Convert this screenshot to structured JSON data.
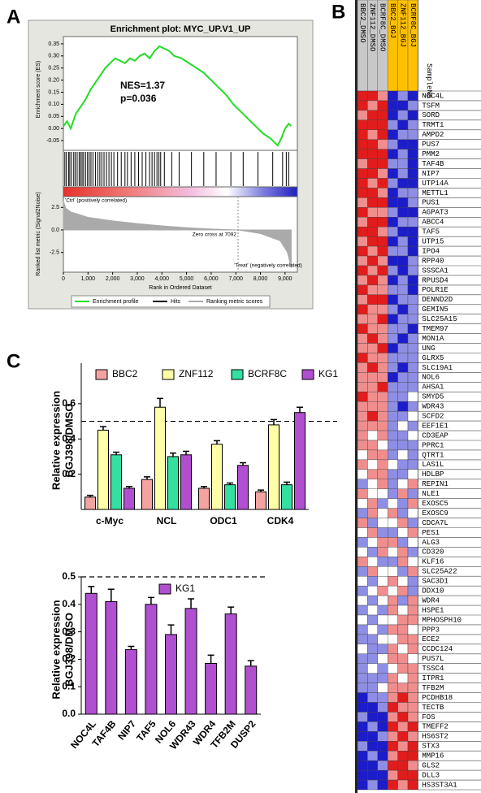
{
  "chart_data": [
    {
      "type": "line",
      "panel": "A",
      "title": "Enrichment plot: MYC_UP.V1_UP",
      "annotations": [
        "NES=1.37",
        "p=0.036"
      ],
      "ylabel": "Enrichment score (ES)",
      "xlabel": "Rank in Ordered Dataset",
      "x": [
        0,
        150,
        300,
        500,
        700,
        900,
        1100,
        1300,
        1500,
        1700,
        1900,
        2100,
        2300,
        2500,
        2700,
        2900,
        3100,
        3300,
        3500,
        3700,
        3900,
        4100,
        4300,
        4500,
        4800,
        5100,
        5400,
        5700,
        6000,
        6300,
        6600,
        6900,
        7200,
        7500,
        7800,
        8100,
        8400,
        8700,
        8850,
        9000,
        9150,
        9250
      ],
      "series": [
        {
          "name": "Enrichment profile",
          "color": "#22dd22",
          "values": [
            0.01,
            0.03,
            0.0,
            0.06,
            0.09,
            0.12,
            0.16,
            0.19,
            0.22,
            0.25,
            0.27,
            0.29,
            0.28,
            0.27,
            0.29,
            0.28,
            0.3,
            0.31,
            0.29,
            0.32,
            0.34,
            0.33,
            0.32,
            0.3,
            0.29,
            0.27,
            0.25,
            0.23,
            0.2,
            0.17,
            0.14,
            0.1,
            0.07,
            0.04,
            0.01,
            -0.02,
            -0.04,
            -0.07,
            -0.04,
            0.0,
            0.02,
            0.01
          ]
        }
      ],
      "xlim": [
        0,
        9500
      ],
      "ylim": [
        -0.09,
        0.38
      ],
      "yticks": [
        0.35,
        {
          "value": 0.3,
          "label": "0.30"
        },
        0.25,
        {
          "value": 0.2,
          "label": "0.20"
        },
        0.15,
        {
          "value": 0.1,
          "label": "0.10"
        },
        0.05,
        {
          "value": 0,
          "label": "0.00"
        },
        -0.05
      ],
      "xticks": [
        0,
        {
          "value": 1000,
          "label": "1,000"
        },
        {
          "value": 2000,
          "label": "2,000"
        },
        {
          "value": 3000,
          "label": "3,000"
        },
        {
          "value": 4000,
          "label": "4,000"
        },
        {
          "value": 5000,
          "label": "5,000"
        },
        {
          "value": 6000,
          "label": "6,000"
        },
        {
          "value": 7000,
          "label": "7,000"
        },
        {
          "value": 8000,
          "label": "8,000"
        },
        {
          "value": 9000,
          "label": "9,000"
        }
      ],
      "hits": {
        "name": "Hits",
        "color": "#000000",
        "x": [
          60,
          120,
          210,
          260,
          330,
          420,
          480,
          560,
          640,
          700,
          760,
          820,
          900,
          980,
          1050,
          1120,
          1200,
          1300,
          1400,
          1480,
          1560,
          1650,
          1750,
          1850,
          1950,
          2050,
          2200,
          2350,
          2500,
          2600,
          2750,
          2900,
          3050,
          3200,
          3350,
          3500,
          3600,
          3700,
          3800,
          3880,
          3950,
          4100,
          4400,
          4700,
          5200,
          5700,
          6200,
          6800,
          7300,
          7900,
          8500,
          8900,
          9050,
          9150
        ]
      },
      "ranked_metric": {
        "name": "Ranking metric scores",
        "color": "#aaaaaa",
        "ylabel": "Ranked list metric (Signal2Noise)",
        "x": [
          0,
          100,
          300,
          1000,
          2000,
          3000,
          4000,
          5000,
          6000,
          7092,
          8000,
          8800,
          9100,
          9250
        ],
        "values": [
          3.2,
          2.4,
          2.0,
          1.4,
          1.0,
          0.7,
          0.45,
          0.25,
          0.1,
          0,
          -0.4,
          -1.2,
          -2.5,
          -4.2
        ],
        "ylim": [
          -4.7,
          3.7
        ],
        "yticks": [
          2.5,
          {
            "value": 0,
            "label": "0.0"
          },
          -2.5
        ],
        "zero_cross": 7092,
        "annotations": [
          "'Ctrl' (positively correlated)",
          "Zero cross at 7092",
          "'Treat' (negatively correlated)"
        ]
      }
    },
    {
      "type": "heatmap",
      "panel": "B",
      "columns": [
        "BBC2_DMSO",
        "ZNF112_DMSO",
        "BCRF8C_DMSO",
        "BBC2_BGJ",
        "ZNF112_BGJ",
        "BCRF8C_BGJ"
      ],
      "column_colors": [
        "#c8c8c8",
        "#c8c8c8",
        "#c8c8c8",
        "#ffc000",
        "#ffc000",
        "#ffc000"
      ],
      "column_header": "SampleNa",
      "colors": {
        "low": "#1c1cc8",
        "mid": "#ffffff",
        "high": "#e01c1c"
      },
      "rows": [
        "NOC4L",
        "TSFM",
        "SORD",
        "TRMT1",
        "AMPD2",
        "PUS7",
        "PMM2",
        "TAF4B",
        "NIP7",
        "UTP14A",
        "METTL1",
        "PUS1",
        "AGPAT3",
        "ABCC4",
        "TAF5",
        "UTP15",
        "IPO4",
        "RPP40",
        "SSSCA1",
        "RPUSD4",
        "POLR1E",
        "DENND2D",
        "GEMIN5",
        "SLC25A15",
        "TMEM97",
        "MON1A",
        "UNG",
        "GLRX5",
        "SLC19A1",
        "NOL6",
        "AHSA1",
        "SMYD5",
        "WDR43",
        "SCFD2",
        "EEF1E1",
        "CD3EAP",
        "PPRC1",
        "QTRT1",
        "LAS1L",
        "HDLBP",
        "REPIN1",
        "NLE1",
        "EXOSC5",
        "EXOSC9",
        "CDCA7L",
        "PES1",
        "ALG3",
        "CD320",
        "KLF16",
        "SLC25A22",
        "SAC3D1",
        "DDX10",
        "WDR4",
        "HSPE1",
        "MPHOSPH10",
        "PPP3",
        "ECE2",
        "CCDC124",
        "PUS7L",
        "TSSC4",
        "ITPR1",
        "TFB2M",
        "PCDHB18",
        "TECTB",
        "FOS",
        "TMEFF2",
        "HS6ST2",
        "STX3",
        "MMP16",
        "GLS2",
        "DLL3",
        "HS3ST3A1"
      ],
      "values": [
        [
          2,
          2,
          1,
          -2,
          -1,
          -2
        ],
        [
          2,
          1,
          2,
          -2,
          -2,
          -1
        ],
        [
          1,
          2,
          2,
          -2,
          -1,
          -2
        ],
        [
          2,
          2,
          2,
          -1,
          -2,
          -1
        ],
        [
          2,
          1,
          2,
          -2,
          -1,
          -1
        ],
        [
          2,
          2,
          1,
          -1,
          -2,
          -2
        ],
        [
          2,
          2,
          2,
          -2,
          -1,
          -2
        ],
        [
          1,
          2,
          2,
          -1,
          -1,
          -2
        ],
        [
          2,
          2,
          1,
          -2,
          -1,
          -2
        ],
        [
          2,
          1,
          2,
          -1,
          -2,
          -2
        ],
        [
          2,
          2,
          1,
          -2,
          -1,
          -1
        ],
        [
          1,
          2,
          2,
          -2,
          -2,
          -1
        ],
        [
          2,
          1,
          1,
          -1,
          -2,
          -2
        ],
        [
          1,
          2,
          2,
          -2,
          -1,
          -1
        ],
        [
          2,
          2,
          1,
          -1,
          -2,
          -2
        ],
        [
          1,
          2,
          2,
          -2,
          -1,
          -2
        ],
        [
          2,
          1,
          2,
          -1,
          -1,
          -2
        ],
        [
          1,
          2,
          1,
          -2,
          -2,
          -1
        ],
        [
          2,
          1,
          2,
          -1,
          -2,
          -1
        ],
        [
          1,
          2,
          1,
          -2,
          -1,
          -2
        ],
        [
          2,
          1,
          1,
          -1,
          -1,
          -2
        ],
        [
          1,
          2,
          2,
          -2,
          -1,
          -1
        ],
        [
          2,
          1,
          1,
          -1,
          -2,
          -1
        ],
        [
          1,
          1,
          2,
          -2,
          -1,
          -1
        ],
        [
          2,
          1,
          1,
          -1,
          -1,
          -2
        ],
        [
          1,
          2,
          1,
          -1,
          -2,
          -1
        ],
        [
          1,
          1,
          2,
          -2,
          -1,
          -1
        ],
        [
          2,
          1,
          1,
          -1,
          -1,
          -1
        ],
        [
          1,
          2,
          1,
          -1,
          -2,
          -1
        ],
        [
          1,
          1,
          1,
          -2,
          -1,
          -1
        ],
        [
          1,
          1,
          2,
          -1,
          -1,
          -1
        ],
        [
          2,
          1,
          1,
          -1,
          -1,
          0
        ],
        [
          1,
          1,
          1,
          -1,
          -2,
          -1
        ],
        [
          1,
          2,
          1,
          -1,
          -1,
          0
        ],
        [
          1,
          1,
          1,
          -1,
          0,
          -1
        ],
        [
          1,
          0,
          1,
          -1,
          -1,
          0
        ],
        [
          1,
          1,
          0,
          -1,
          -1,
          -1
        ],
        [
          0,
          1,
          1,
          -1,
          0,
          -1
        ],
        [
          1,
          0,
          1,
          0,
          -1,
          -1
        ],
        [
          0,
          1,
          1,
          -1,
          -1,
          0
        ],
        [
          -1,
          0,
          1,
          -1,
          0,
          1
        ],
        [
          1,
          0,
          0,
          -1,
          1,
          -1
        ],
        [
          0,
          1,
          -1,
          0,
          -1,
          1
        ],
        [
          -1,
          1,
          0,
          1,
          -1,
          0
        ],
        [
          1,
          -1,
          0,
          0,
          1,
          -1
        ],
        [
          0,
          1,
          -1,
          -1,
          0,
          1
        ],
        [
          -1,
          0,
          1,
          1,
          -1,
          0
        ],
        [
          0,
          -1,
          1,
          0,
          1,
          -1
        ],
        [
          1,
          0,
          -1,
          -1,
          1,
          0
        ],
        [
          -1,
          1,
          0,
          0,
          -1,
          1
        ],
        [
          0,
          -1,
          0,
          1,
          0,
          -1
        ],
        [
          -1,
          0,
          1,
          0,
          1,
          -1
        ],
        [
          0,
          -1,
          0,
          1,
          -1,
          1
        ],
        [
          -1,
          0,
          -1,
          1,
          0,
          1
        ],
        [
          0,
          -1,
          0,
          0,
          1,
          1
        ],
        [
          -1,
          0,
          -1,
          1,
          1,
          0
        ],
        [
          -1,
          -1,
          0,
          0,
          1,
          1
        ],
        [
          0,
          -1,
          -1,
          1,
          0,
          1
        ],
        [
          -1,
          -1,
          0,
          1,
          1,
          0
        ],
        [
          -1,
          0,
          -1,
          0,
          1,
          1
        ],
        [
          -1,
          -1,
          -1,
          1,
          0,
          1
        ],
        [
          -1,
          -1,
          0,
          1,
          1,
          1
        ],
        [
          -2,
          -1,
          -1,
          1,
          2,
          1
        ],
        [
          -2,
          -2,
          -1,
          2,
          1,
          1
        ],
        [
          -1,
          -2,
          -2,
          1,
          2,
          1
        ],
        [
          -2,
          -1,
          -2,
          2,
          1,
          2
        ],
        [
          -2,
          -2,
          -1,
          1,
          2,
          1
        ],
        [
          -1,
          -2,
          -2,
          2,
          1,
          2
        ],
        [
          -2,
          -1,
          -2,
          1,
          2,
          2
        ],
        [
          -2,
          -2,
          -1,
          2,
          2,
          1
        ],
        [
          -2,
          -2,
          -2,
          1,
          2,
          2
        ],
        [
          -2,
          -1,
          -2,
          2,
          1,
          2
        ]
      ]
    },
    {
      "type": "bar",
      "panel": "C",
      "categories": [
        "c-Myc",
        "NCL",
        "ODC1",
        "CDK4"
      ],
      "series": [
        {
          "name": "BBC2",
          "color": "#f4a3a0",
          "values": [
            0.07,
            0.17,
            0.12,
            0.1
          ],
          "errors": [
            0.01,
            0.015,
            0.01,
            0.01
          ]
        },
        {
          "name": "ZNF112",
          "color": "#ffffa8",
          "values": [
            0.45,
            0.58,
            0.37,
            0.48
          ],
          "errors": [
            0.02,
            0.05,
            0.02,
            0.03
          ]
        },
        {
          "name": "BCRF8C",
          "color": "#33e0a0",
          "values": [
            0.31,
            0.3,
            0.14,
            0.14
          ],
          "errors": [
            0.015,
            0.02,
            0.01,
            0.015
          ]
        },
        {
          "name": "KG1",
          "color": "#b04fd0",
          "values": [
            0.12,
            0.31,
            0.25,
            0.55
          ],
          "errors": [
            0.01,
            0.02,
            0.015,
            0.03
          ]
        }
      ],
      "ylabel": [
        "Relative expression",
        "BGJ398/DMSO"
      ],
      "ylim": [
        0,
        0.83
      ],
      "yticks": [
        0.2,
        0.4,
        0.6
      ],
      "reference_line": 0.5
    },
    {
      "type": "bar",
      "categories": [
        "NOC4L",
        "TAF4B",
        "NIP7",
        "TAF5",
        "NOL6",
        "WDR43",
        "WDR4",
        "TFB2M",
        "DUSP2"
      ],
      "series": [
        {
          "name": "KG1",
          "color": "#b04fd0",
          "values": [
            0.44,
            0.41,
            0.235,
            0.4,
            0.29,
            0.385,
            0.185,
            0.365,
            0.175
          ],
          "errors": [
            0.025,
            0.045,
            0.012,
            0.025,
            0.035,
            0.035,
            0.03,
            0.025,
            0.02
          ]
        }
      ],
      "ylabel": [
        "Relative expression",
        "BGJ398/DMSO"
      ],
      "ylim": [
        0,
        0.5
      ],
      "yticks": [
        {
          "value": 0,
          "label": "0.0"
        },
        0.1,
        0.2,
        0.3,
        0.4,
        0.5
      ],
      "reference_line": 0.5
    }
  ]
}
